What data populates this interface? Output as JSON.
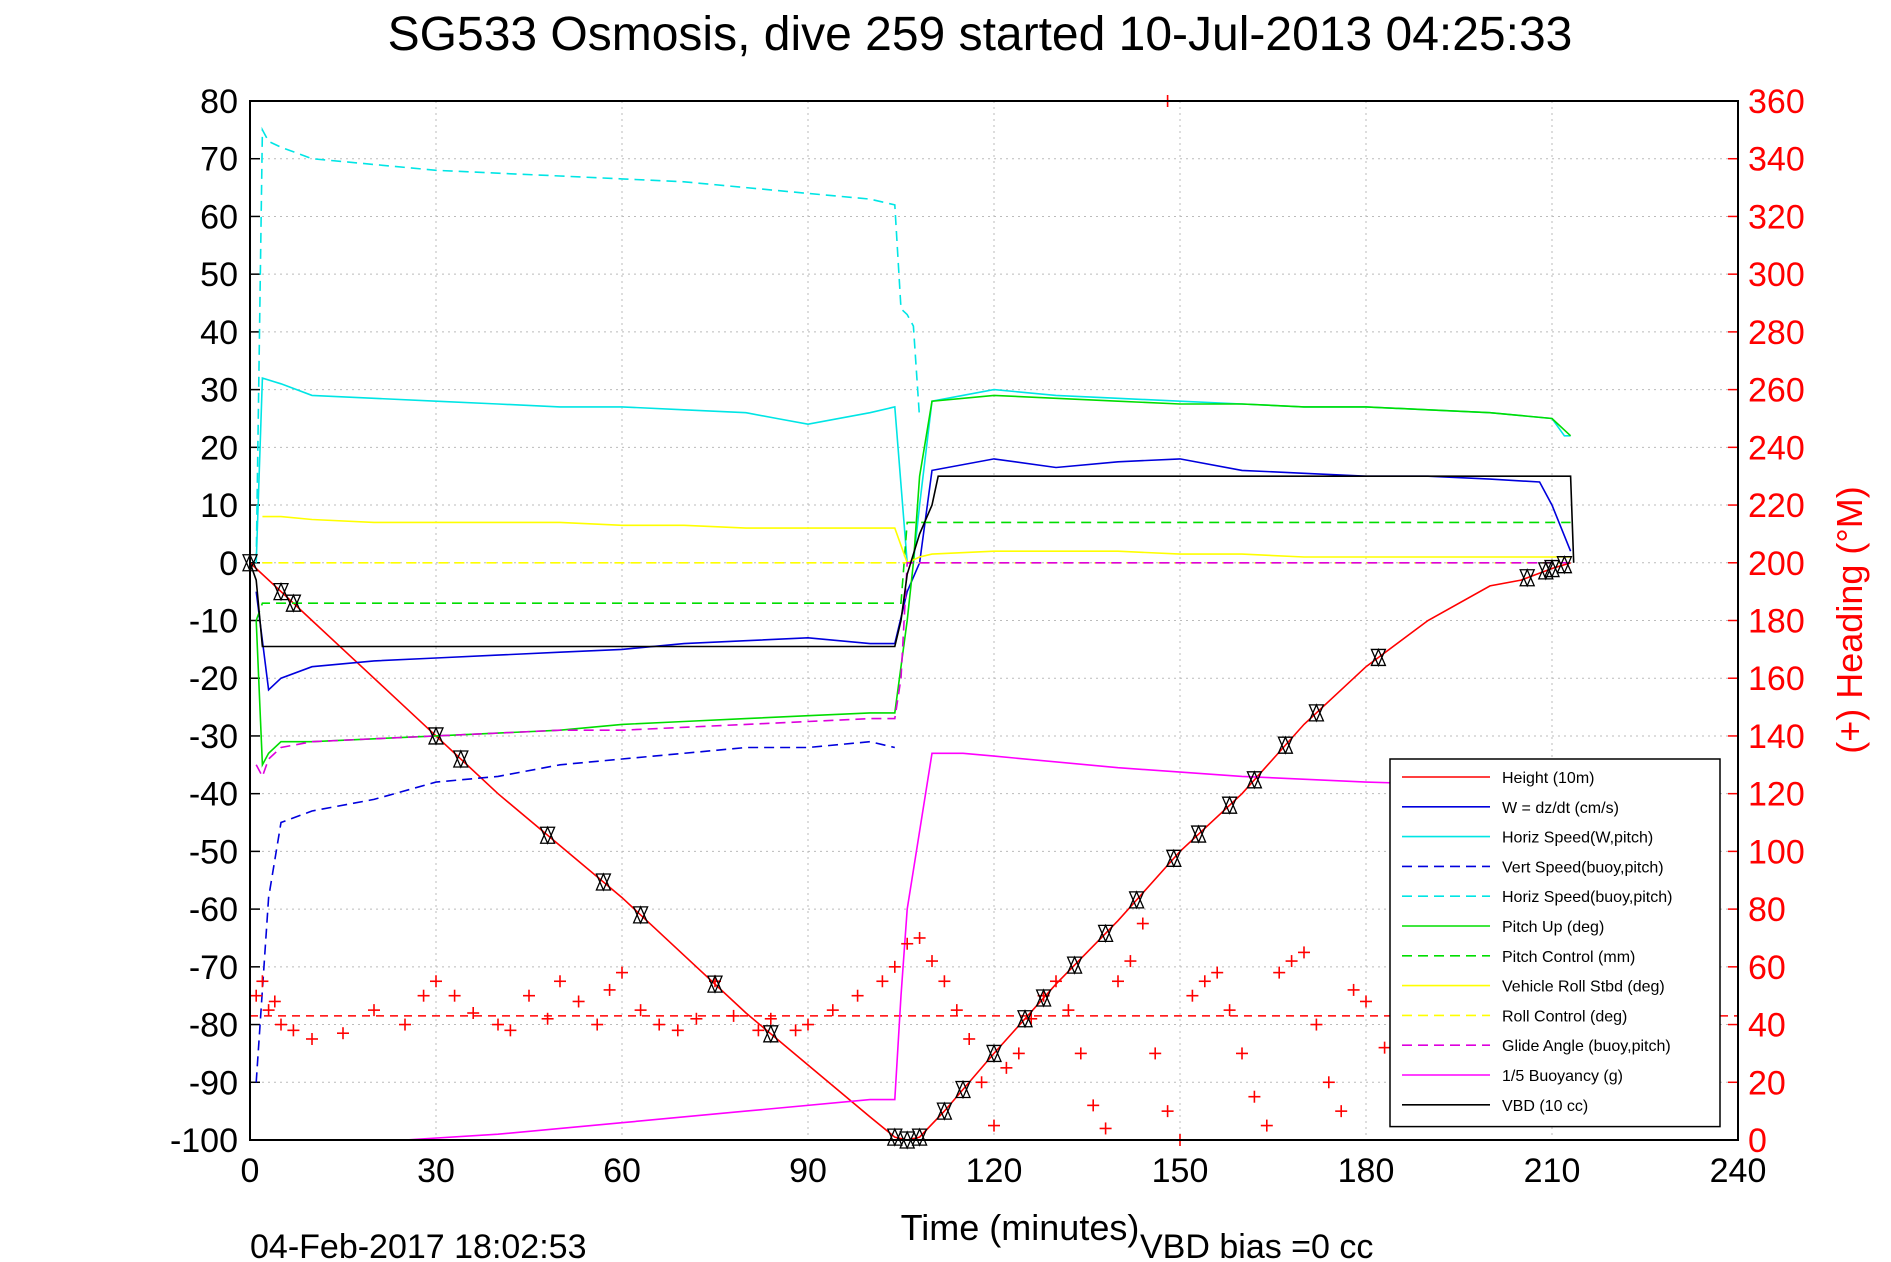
{
  "chart_data": {
    "type": "line",
    "title": "SG533 Osmosis, dive 259 started 10-Jul-2013 04:25:33",
    "xlabel": "Time (minutes)",
    "ylabel": "",
    "y2label": "(+) Heading (°M)",
    "xlim": [
      0,
      240
    ],
    "ylim": [
      -100,
      80
    ],
    "y2lim": [
      0,
      360
    ],
    "xticks": [
      "0",
      "30",
      "60",
      "90",
      "120",
      "150",
      "180",
      "210",
      "240"
    ],
    "yticks": [
      "80",
      "70",
      "60",
      "50",
      "40",
      "30",
      "20",
      "10",
      "0",
      "-10",
      "-20",
      "-30",
      "-40",
      "-50",
      "-60",
      "-70",
      "-80",
      "-90",
      "-100"
    ],
    "y2ticks": [
      "360",
      "340",
      "320",
      "300",
      "280",
      "260",
      "240",
      "220",
      "200",
      "180",
      "160",
      "140",
      "120",
      "100",
      "80",
      "60",
      "40",
      "20",
      "0"
    ],
    "grid": true,
    "legend_position": "lower-right",
    "timestamp": "04-Feb-2017 18:02:53",
    "vbd_note": "VBD bias =0 cc",
    "series": [
      {
        "name": "Height (10m)",
        "color": "#ff0000",
        "style": "solid",
        "x": [
          0,
          5,
          10,
          20,
          30,
          40,
          50,
          60,
          70,
          80,
          90,
          100,
          104,
          106,
          108,
          112,
          120,
          130,
          140,
          150,
          160,
          170,
          180,
          190,
          200,
          205,
          210,
          213
        ],
        "y": [
          0,
          -5,
          -10,
          -20,
          -30,
          -40,
          -49,
          -58,
          -68,
          -78,
          -87,
          -96,
          -99.5,
          -100,
          -99.5,
          -95,
          -85,
          -73,
          -62,
          -50,
          -40,
          -28,
          -18,
          -10,
          -4,
          -3,
          -1,
          0
        ]
      },
      {
        "name": "W = dz/dt (cm/s)",
        "color": "#0000dd",
        "style": "solid",
        "x": [
          1,
          3,
          5,
          10,
          20,
          30,
          40,
          50,
          60,
          70,
          80,
          90,
          100,
          103,
          104,
          106,
          108,
          110,
          120,
          130,
          140,
          150,
          160,
          170,
          180,
          190,
          200,
          208,
          210,
          213
        ],
        "y": [
          -5,
          -22,
          -20,
          -18,
          -17,
          -16.5,
          -16,
          -15.5,
          -15,
          -14,
          -13.5,
          -13,
          -14,
          -14,
          -14,
          -5,
          0,
          16,
          18,
          16.5,
          17.5,
          18,
          16,
          15.5,
          15,
          15,
          14.5,
          14,
          10,
          2
        ]
      },
      {
        "name": "Horiz Speed(W,pitch)",
        "color": "#00e5e5",
        "style": "solid",
        "x": [
          1,
          2,
          5,
          10,
          20,
          30,
          40,
          50,
          60,
          70,
          80,
          85,
          90,
          100,
          104,
          106,
          107,
          108,
          110,
          120,
          130,
          140,
          150,
          160,
          170,
          180,
          190,
          200,
          210,
          212,
          213
        ],
        "y": [
          0,
          32,
          31,
          29,
          28.5,
          28,
          27.5,
          27,
          27,
          26.5,
          26,
          25,
          24,
          26,
          27,
          0,
          0,
          10,
          28,
          30,
          29,
          28.5,
          28,
          27.5,
          27,
          27,
          26.5,
          26,
          25,
          22,
          22
        ]
      },
      {
        "name": "Vert Speed(buoy,pitch)",
        "color": "#0000dd",
        "style": "dashed",
        "x": [
          1,
          3,
          5,
          10,
          20,
          30,
          40,
          50,
          60,
          70,
          80,
          90,
          100,
          104
        ],
        "y": [
          -90,
          -58,
          -45,
          -43,
          -41,
          -38,
          -37,
          -35,
          -34,
          -33,
          -32,
          -32,
          -31,
          -32
        ]
      },
      {
        "name": "Horiz Speed(buoy,pitch)",
        "color": "#00e5e5",
        "style": "dashed",
        "x": [
          1,
          2,
          3,
          5,
          10,
          20,
          30,
          40,
          50,
          60,
          70,
          80,
          90,
          100,
          104,
          105,
          106,
          107,
          108
        ],
        "y": [
          0,
          75,
          73,
          72,
          70,
          69,
          68,
          67.5,
          67,
          66.5,
          66,
          65,
          64,
          63,
          62,
          44,
          43,
          41,
          25
        ]
      },
      {
        "name": "Pitch Up (deg)",
        "color": "#00dd00",
        "style": "solid",
        "x": [
          1,
          2,
          3,
          5,
          10,
          20,
          30,
          40,
          50,
          60,
          70,
          80,
          90,
          100,
          104,
          106,
          107,
          108,
          110,
          120,
          130,
          140,
          150,
          160,
          170,
          180,
          190,
          200,
          210,
          213
        ],
        "y": [
          -10,
          -35,
          -33,
          -31,
          -31,
          -30.5,
          -30,
          -29.5,
          -29,
          -28,
          -27.5,
          -27,
          -26.5,
          -26,
          -26,
          -10,
          0,
          15,
          28,
          29,
          28.5,
          28,
          27.5,
          27.5,
          27,
          27,
          26.5,
          26,
          25,
          22
        ]
      },
      {
        "name": "Pitch Control (mm)",
        "color": "#00dd00",
        "style": "dashed",
        "x": [
          1,
          2,
          3,
          104,
          105,
          106,
          107,
          213
        ],
        "y": [
          -10,
          -7,
          -7,
          -7,
          -7,
          7,
          7,
          7
        ]
      },
      {
        "name": "Vehicle Roll Stbd (deg)",
        "color": "#ffff00",
        "style": "solid",
        "x": [
          2,
          5,
          10,
          20,
          30,
          40,
          50,
          60,
          70,
          80,
          90,
          100,
          104,
          106,
          108,
          110,
          120,
          130,
          140,
          150,
          160,
          170,
          180,
          190,
          200,
          210,
          213
        ],
        "y": [
          8,
          8,
          7.5,
          7,
          7,
          7,
          7,
          6.5,
          6.5,
          6,
          6,
          6,
          6,
          0,
          1,
          1.5,
          2,
          2,
          2,
          1.5,
          1.5,
          1,
          1,
          1,
          1,
          1,
          1
        ]
      },
      {
        "name": "Roll Control (deg)",
        "color": "#ffff00",
        "style": "dashed",
        "x": [
          2,
          104,
          105,
          213
        ],
        "y": [
          0,
          0,
          0,
          0
        ]
      },
      {
        "name": "Glide Angle (buoy,pitch)",
        "color": "#dd00dd",
        "style": "dashed",
        "x": [
          1,
          2,
          3,
          5,
          10,
          20,
          30,
          40,
          50,
          60,
          70,
          80,
          90,
          100,
          104,
          105,
          106,
          107,
          213
        ],
        "y": [
          -35,
          -37,
          -34,
          -32,
          -31,
          -30.5,
          -30,
          -29.5,
          -29,
          -29,
          -28.5,
          -28,
          -27.5,
          -27,
          -27,
          -20,
          0,
          0,
          0
        ]
      },
      {
        "name": "1/5 Buoyancy (g)",
        "color": "#ff00ff",
        "style": "solid",
        "x": [
          25,
          40,
          60,
          80,
          100,
          104,
          105,
          106,
          110,
          115,
          120,
          140,
          160,
          180,
          213
        ],
        "y": [
          -100,
          -99,
          -97,
          -95,
          -93,
          -93,
          -75,
          -60,
          -33,
          -33,
          -33.5,
          -35.5,
          -37,
          -38,
          -39
        ]
      },
      {
        "name": "VBD (10 cc)",
        "color": "#000000",
        "style": "solid",
        "x": [
          0,
          1,
          2,
          104,
          105,
          106,
          108,
          110,
          111,
          213,
          213.5
        ],
        "y": [
          0,
          -3,
          -14.5,
          -14.5,
          -10,
          -2,
          5,
          10,
          15,
          15,
          0
        ]
      }
    ],
    "heading_points_deg": [
      [
        1,
        50
      ],
      [
        2,
        55
      ],
      [
        3,
        45
      ],
      [
        4,
        48
      ],
      [
        5,
        40
      ],
      [
        7,
        38
      ],
      [
        10,
        35
      ],
      [
        15,
        37
      ],
      [
        20,
        45
      ],
      [
        25,
        40
      ],
      [
        28,
        50
      ],
      [
        30,
        55
      ],
      [
        33,
        50
      ],
      [
        36,
        44
      ],
      [
        40,
        40
      ],
      [
        42,
        38
      ],
      [
        45,
        50
      ],
      [
        48,
        42
      ],
      [
        50,
        55
      ],
      [
        53,
        48
      ],
      [
        56,
        40
      ],
      [
        58,
        52
      ],
      [
        60,
        58
      ],
      [
        63,
        45
      ],
      [
        66,
        40
      ],
      [
        69,
        38
      ],
      [
        72,
        42
      ],
      [
        75,
        55
      ],
      [
        78,
        43
      ],
      [
        82,
        38
      ],
      [
        84,
        42
      ],
      [
        88,
        38
      ],
      [
        90,
        40
      ],
      [
        94,
        45
      ],
      [
        98,
        50
      ],
      [
        102,
        55
      ],
      [
        104,
        60
      ],
      [
        106,
        68
      ],
      [
        108,
        70
      ],
      [
        110,
        62
      ],
      [
        112,
        55
      ],
      [
        114,
        45
      ],
      [
        116,
        35
      ],
      [
        118,
        20
      ],
      [
        120,
        5
      ],
      [
        122,
        25
      ],
      [
        124,
        30
      ],
      [
        126,
        42
      ],
      [
        128,
        50
      ],
      [
        130,
        55
      ],
      [
        132,
        45
      ],
      [
        134,
        30
      ],
      [
        136,
        12
      ],
      [
        138,
        4
      ],
      [
        140,
        55
      ],
      [
        142,
        62
      ],
      [
        144,
        75
      ],
      [
        146,
        30
      ],
      [
        148,
        10
      ],
      [
        150,
        0
      ],
      [
        152,
        50
      ],
      [
        154,
        55
      ],
      [
        156,
        58
      ],
      [
        158,
        45
      ],
      [
        160,
        30
      ],
      [
        162,
        15
      ],
      [
        164,
        5
      ],
      [
        166,
        58
      ],
      [
        168,
        62
      ],
      [
        170,
        65
      ],
      [
        172,
        40
      ],
      [
        174,
        20
      ],
      [
        176,
        10
      ],
      [
        178,
        52
      ],
      [
        180,
        48
      ],
      [
        183,
        32
      ],
      [
        186,
        26
      ],
      [
        189,
        12
      ],
      [
        192,
        55
      ],
      [
        194,
        50
      ],
      [
        196,
        44
      ],
      [
        199,
        38
      ],
      [
        202,
        30
      ],
      [
        205,
        48
      ],
      [
        208,
        42
      ],
      [
        210,
        40
      ],
      [
        212,
        35
      ],
      [
        148,
        360
      ]
    ],
    "heading_mean_deg": 43,
    "markers_x": [
      0,
      5,
      7,
      30,
      34,
      48,
      57,
      63,
      75,
      84,
      104,
      106,
      108,
      112,
      115,
      120,
      125,
      128,
      133,
      138,
      143,
      149,
      153,
      158,
      162,
      167,
      172,
      182,
      206,
      209,
      210,
      212
    ]
  }
}
